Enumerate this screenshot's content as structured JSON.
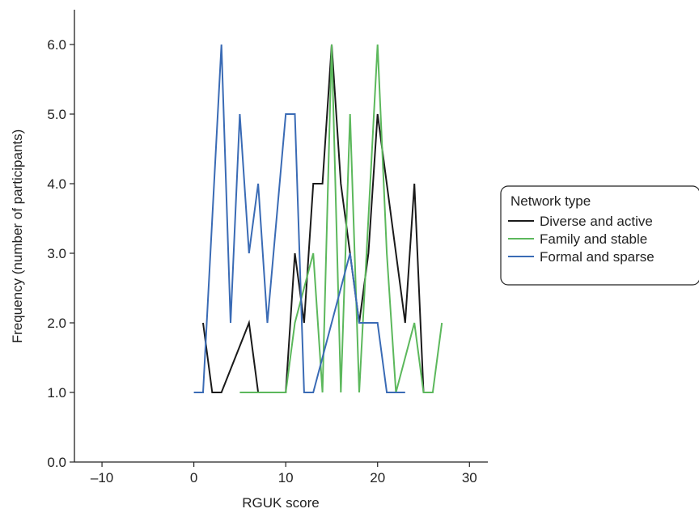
{
  "chart_data": {
    "type": "line",
    "xlabel": "RGUK score",
    "ylabel": "Frequency (number of participants)",
    "xlim": [
      -13,
      32
    ],
    "ylim": [
      0,
      6.5
    ],
    "x_ticks": [
      -10,
      0,
      10,
      20,
      30
    ],
    "x_tick_labels": [
      "–10",
      "0",
      "10",
      "20",
      "30"
    ],
    "y_ticks": [
      0,
      1,
      2,
      3,
      4,
      5,
      6
    ],
    "y_tick_labels": [
      "0.0",
      "1.0",
      "2.0",
      "3.0",
      "4.0",
      "5.0",
      "6.0"
    ],
    "grid": false,
    "legend": {
      "title": "Network type",
      "position": "right"
    },
    "series": [
      {
        "name": "Diverse and active",
        "color": "#1a1a1a",
        "x": [
          1,
          2,
          3,
          6,
          7,
          10,
          11,
          12,
          13,
          14,
          15,
          16,
          18,
          19,
          20,
          23,
          24,
          25
        ],
        "y": [
          2,
          1,
          1,
          2,
          1,
          1,
          3,
          2,
          4,
          4,
          6,
          4,
          2,
          3,
          5,
          2,
          4,
          1
        ]
      },
      {
        "name": "Family and stable",
        "color": "#5cb85c",
        "x": [
          5,
          10,
          11,
          13,
          14,
          15,
          16,
          17,
          18,
          20,
          21,
          22,
          24,
          25,
          26,
          27
        ],
        "y": [
          1,
          1,
          2,
          3,
          1,
          6,
          1,
          5,
          1,
          6,
          3,
          1,
          2,
          1,
          1,
          2
        ]
      },
      {
        "name": "Formal and sparse",
        "color": "#3a6bb5",
        "x": [
          0,
          1,
          3,
          4,
          5,
          6,
          7,
          8,
          10,
          11,
          12,
          13,
          17,
          18,
          20,
          21,
          23
        ],
        "y": [
          1,
          1,
          6,
          2,
          5,
          3,
          4,
          2,
          5,
          5,
          1,
          1,
          3,
          2,
          2,
          1,
          1
        ]
      }
    ]
  }
}
